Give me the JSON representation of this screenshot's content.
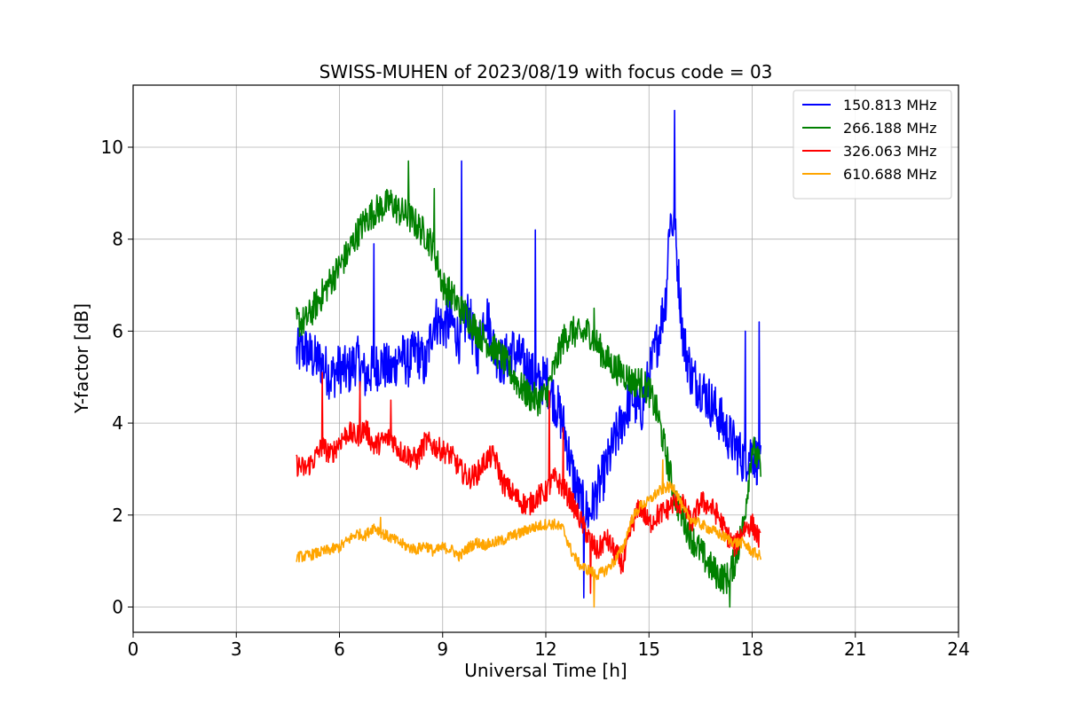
{
  "chart_data": {
    "type": "line",
    "title": "SWISS-MUHEN of 2023/08/19 with focus code = 03",
    "xlabel": "Universal Time [h]",
    "ylabel": "Y-factor [dB]",
    "xlim": [
      0,
      24
    ],
    "ylim": [
      -0.55,
      11.35
    ],
    "xticks": [
      0,
      3,
      6,
      9,
      12,
      15,
      18,
      21,
      24
    ],
    "yticks": [
      0,
      2,
      4,
      6,
      8,
      10
    ],
    "grid": true,
    "legend_position": "top-right",
    "series": [
      {
        "name": "150.813 MHz",
        "color": "#0000ff",
        "x": [
          4.75,
          5.0,
          5.25,
          5.5,
          5.75,
          6.0,
          6.25,
          6.5,
          6.75,
          7.0,
          7.25,
          7.5,
          7.75,
          8.0,
          8.25,
          8.5,
          8.75,
          9.0,
          9.25,
          9.5,
          9.75,
          10.0,
          10.25,
          10.5,
          10.75,
          11.0,
          11.25,
          11.5,
          11.75,
          12.0,
          12.25,
          12.5,
          12.75,
          13.0,
          13.25,
          13.5,
          13.75,
          14.0,
          14.25,
          14.5,
          14.75,
          15.0,
          15.25,
          15.5,
          15.6,
          15.75,
          16.0,
          16.25,
          16.5,
          16.75,
          17.0,
          17.25,
          17.5,
          17.75,
          18.0,
          18.25
        ],
        "y": [
          5.5,
          5.6,
          5.4,
          5.3,
          5.0,
          5.2,
          5.1,
          5.4,
          5.0,
          5.2,
          5.3,
          5.1,
          5.5,
          5.3,
          5.6,
          5.2,
          6.3,
          6.1,
          6.2,
          5.8,
          6.4,
          5.5,
          6.5,
          5.6,
          5.3,
          5.6,
          5.4,
          5.2,
          4.8,
          5.0,
          4.5,
          4.0,
          3.0,
          2.3,
          2.0,
          2.5,
          3.0,
          3.6,
          4.1,
          4.6,
          4.2,
          5.0,
          5.8,
          6.8,
          8.5,
          8.2,
          5.8,
          5.0,
          4.8,
          4.5,
          4.2,
          3.8,
          3.5,
          3.2,
          3.4,
          3.0
        ],
        "peaks": [
          [
            7.0,
            7.9
          ],
          [
            9.55,
            9.7
          ],
          [
            11.7,
            8.2
          ],
          [
            13.1,
            0.2
          ],
          [
            15.75,
            10.8
          ],
          [
            17.8,
            6.0
          ],
          [
            18.2,
            6.2
          ]
        ]
      },
      {
        "name": "266.188 MHz",
        "color": "#008000",
        "x": [
          4.75,
          5.0,
          5.25,
          5.5,
          5.75,
          6.0,
          6.25,
          6.5,
          6.75,
          7.0,
          7.25,
          7.5,
          7.75,
          8.0,
          8.25,
          8.5,
          8.75,
          9.0,
          9.25,
          9.5,
          9.75,
          10.0,
          10.25,
          10.5,
          10.75,
          11.0,
          11.25,
          11.5,
          11.75,
          12.0,
          12.25,
          12.5,
          12.75,
          13.0,
          13.25,
          13.5,
          13.75,
          14.0,
          14.25,
          14.5,
          14.75,
          15.0,
          15.25,
          15.5,
          15.75,
          16.0,
          16.25,
          16.5,
          16.75,
          17.0,
          17.25,
          17.5,
          17.75,
          18.0,
          18.25
        ],
        "y": [
          6.2,
          6.2,
          6.5,
          6.8,
          7.1,
          7.4,
          7.7,
          8.1,
          8.4,
          8.6,
          8.7,
          8.8,
          8.6,
          8.5,
          8.3,
          8.1,
          7.8,
          7.0,
          6.8,
          6.5,
          6.3,
          6.0,
          5.8,
          5.6,
          5.4,
          5.1,
          4.8,
          4.6,
          4.5,
          4.6,
          5.2,
          5.8,
          6.0,
          5.9,
          6.0,
          5.7,
          5.4,
          5.2,
          5.1,
          4.9,
          4.9,
          4.7,
          4.2,
          3.3,
          2.4,
          1.9,
          1.5,
          1.2,
          0.9,
          0.7,
          0.6,
          1.0,
          1.8,
          3.5,
          3.0
        ],
        "peaks": [
          [
            8.0,
            9.7
          ],
          [
            8.75,
            9.1
          ],
          [
            13.4,
            6.5
          ],
          [
            17.35,
            0.0
          ]
        ]
      },
      {
        "name": "326.063 MHz",
        "color": "#ff0000",
        "x": [
          4.75,
          5.0,
          5.25,
          5.5,
          5.75,
          6.0,
          6.25,
          6.5,
          6.75,
          7.0,
          7.25,
          7.5,
          7.75,
          8.0,
          8.25,
          8.5,
          8.75,
          9.0,
          9.25,
          9.5,
          9.75,
          10.0,
          10.25,
          10.5,
          10.75,
          11.0,
          11.25,
          11.5,
          11.75,
          12.0,
          12.25,
          12.5,
          12.75,
          13.0,
          13.25,
          13.5,
          13.75,
          14.0,
          14.25,
          14.5,
          14.75,
          15.0,
          15.25,
          15.5,
          15.75,
          16.0,
          16.25,
          16.5,
          16.75,
          17.0,
          17.25,
          17.5,
          17.75,
          18.0,
          18.25
        ],
        "y": [
          3.1,
          3.0,
          3.2,
          3.5,
          3.3,
          3.6,
          3.8,
          3.7,
          3.9,
          3.5,
          3.6,
          3.7,
          3.4,
          3.3,
          3.2,
          3.6,
          3.5,
          3.4,
          3.3,
          3.0,
          2.8,
          2.9,
          3.2,
          3.3,
          2.7,
          2.5,
          2.3,
          2.2,
          2.4,
          2.5,
          2.8,
          2.6,
          2.3,
          1.9,
          1.5,
          1.2,
          1.5,
          1.2,
          0.9,
          1.8,
          2.2,
          1.8,
          2.0,
          2.1,
          2.3,
          2.2,
          1.8,
          2.3,
          2.2,
          2.0,
          1.6,
          1.3,
          1.7,
          1.8,
          1.4
        ],
        "peaks": [
          [
            5.5,
            5.1
          ],
          [
            6.6,
            4.9
          ],
          [
            7.5,
            4.5
          ],
          [
            12.1,
            4.7
          ],
          [
            12.5,
            3.9
          ],
          [
            13.3,
            0.3
          ]
        ]
      },
      {
        "name": "610.688 MHz",
        "color": "#ffa500",
        "x": [
          4.75,
          5.0,
          5.25,
          5.5,
          5.75,
          6.0,
          6.25,
          6.5,
          6.75,
          7.0,
          7.25,
          7.5,
          7.75,
          8.0,
          8.25,
          8.5,
          8.75,
          9.0,
          9.25,
          9.5,
          9.75,
          10.0,
          10.25,
          10.5,
          10.75,
          11.0,
          11.25,
          11.5,
          11.75,
          12.0,
          12.25,
          12.5,
          12.75,
          13.0,
          13.25,
          13.5,
          13.75,
          14.0,
          14.25,
          14.5,
          14.75,
          15.0,
          15.25,
          15.5,
          15.75,
          16.0,
          16.25,
          16.5,
          16.75,
          17.0,
          17.25,
          17.5,
          17.75,
          18.0,
          18.25
        ],
        "y": [
          1.1,
          1.1,
          1.15,
          1.2,
          1.25,
          1.3,
          1.45,
          1.6,
          1.55,
          1.75,
          1.6,
          1.5,
          1.4,
          1.3,
          1.25,
          1.35,
          1.2,
          1.3,
          1.25,
          1.1,
          1.3,
          1.4,
          1.35,
          1.4,
          1.45,
          1.55,
          1.6,
          1.7,
          1.75,
          1.8,
          1.8,
          1.7,
          1.2,
          0.9,
          0.8,
          0.7,
          0.8,
          1.0,
          1.3,
          1.9,
          2.2,
          2.3,
          2.5,
          2.6,
          2.6,
          2.1,
          1.9,
          1.8,
          1.7,
          1.6,
          1.5,
          1.4,
          1.4,
          1.2,
          1.1
        ],
        "peaks": [
          [
            7.2,
            1.95
          ],
          [
            13.4,
            0.0
          ],
          [
            15.4,
            3.2
          ]
        ]
      }
    ]
  }
}
